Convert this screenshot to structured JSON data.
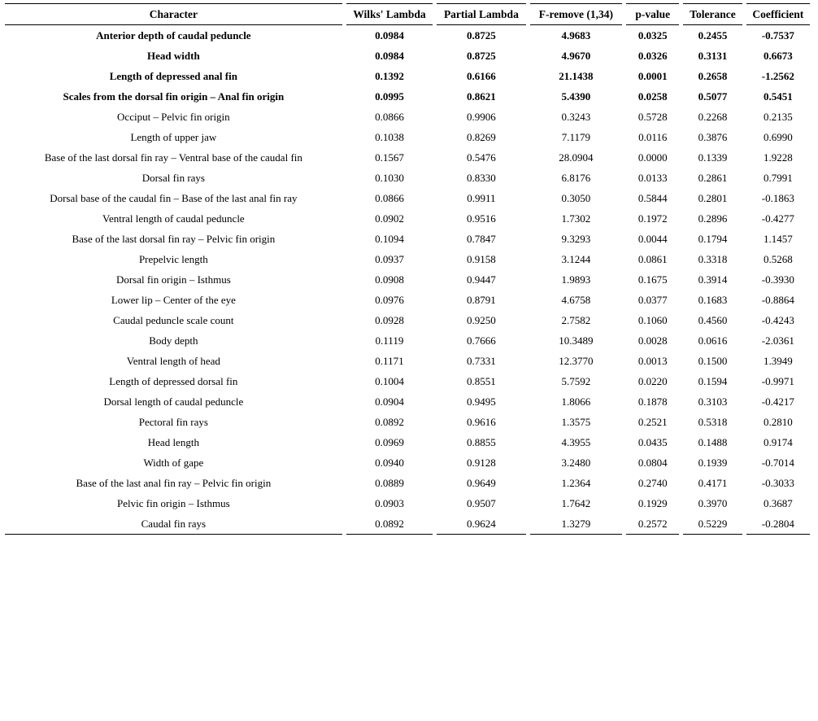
{
  "table": {
    "columns": [
      "Character",
      "Wilks' Lambda",
      "Partial Lambda",
      "F-remove (1,34)",
      "p-value",
      "Tolerance",
      "Coefficient"
    ],
    "rows": [
      {
        "character": "Anterior depth of caudal peduncle",
        "bold": true,
        "values": [
          "0.0984",
          "0.8725",
          "4.9683",
          "0.0325",
          "0.2455",
          "-0.7537"
        ]
      },
      {
        "character": "Head width",
        "bold": true,
        "values": [
          "0.0984",
          "0.8725",
          "4.9670",
          "0.0326",
          "0.3131",
          "0.6673"
        ]
      },
      {
        "character": "Length of depressed anal fin",
        "bold": true,
        "values": [
          "0.1392",
          "0.6166",
          "21.1438",
          "0.0001",
          "0.2658",
          "-1.2562"
        ]
      },
      {
        "character": "Scales from the dorsal fin origin – Anal fin origin",
        "bold": true,
        "values": [
          "0.0995",
          "0.8621",
          "5.4390",
          "0.0258",
          "0.5077",
          "0.5451"
        ]
      },
      {
        "character": "Occiput – Pelvic fin origin",
        "bold": false,
        "values": [
          "0.0866",
          "0.9906",
          "0.3243",
          "0.5728",
          "0.2268",
          "0.2135"
        ]
      },
      {
        "character": "Length of upper jaw",
        "bold": false,
        "values": [
          "0.1038",
          "0.8269",
          "7.1179",
          "0.0116",
          "0.3876",
          "0.6990"
        ]
      },
      {
        "character": "Base of the last dorsal fin ray – Ventral base of the caudal fin",
        "bold": false,
        "values": [
          "0.1567",
          "0.5476",
          "28.0904",
          "0.0000",
          "0.1339",
          "1.9228"
        ]
      },
      {
        "character": "Dorsal fin rays",
        "bold": false,
        "values": [
          "0.1030",
          "0.8330",
          "6.8176",
          "0.0133",
          "0.2861",
          "0.7991"
        ]
      },
      {
        "character": "Dorsal base of the caudal fin – Base of the last anal fin ray",
        "bold": false,
        "values": [
          "0.0866",
          "0.9911",
          "0.3050",
          "0.5844",
          "0.2801",
          "-0.1863"
        ]
      },
      {
        "character": "Ventral length of caudal peduncle",
        "bold": false,
        "values": [
          "0.0902",
          "0.9516",
          "1.7302",
          "0.1972",
          "0.2896",
          "-0.4277"
        ]
      },
      {
        "character": "Base of the last dorsal fin ray – Pelvic fin origin",
        "bold": false,
        "values": [
          "0.1094",
          "0.7847",
          "9.3293",
          "0.0044",
          "0.1794",
          "1.1457"
        ]
      },
      {
        "character": "Prepelvic length",
        "bold": false,
        "values": [
          "0.0937",
          "0.9158",
          "3.1244",
          "0.0861",
          "0.3318",
          "0.5268"
        ]
      },
      {
        "character": "Dorsal fin origin – Isthmus",
        "bold": false,
        "values": [
          "0.0908",
          "0.9447",
          "1.9893",
          "0.1675",
          "0.3914",
          "-0.3930"
        ]
      },
      {
        "character": "Lower lip – Center of the eye",
        "bold": false,
        "values": [
          "0.0976",
          "0.8791",
          "4.6758",
          "0.0377",
          "0.1683",
          "-0.8864"
        ]
      },
      {
        "character": "Caudal peduncle scale count",
        "bold": false,
        "values": [
          "0.0928",
          "0.9250",
          "2.7582",
          "0.1060",
          "0.4560",
          "-0.4243"
        ]
      },
      {
        "character": "Body depth",
        "bold": false,
        "values": [
          "0.1119",
          "0.7666",
          "10.3489",
          "0.0028",
          "0.0616",
          "-2.0361"
        ]
      },
      {
        "character": "Ventral length of head",
        "bold": false,
        "values": [
          "0.1171",
          "0.7331",
          "12.3770",
          "0.0013",
          "0.1500",
          "1.3949"
        ]
      },
      {
        "character": "Length of depressed dorsal fin",
        "bold": false,
        "values": [
          "0.1004",
          "0.8551",
          "5.7592",
          "0.0220",
          "0.1594",
          "-0.9971"
        ]
      },
      {
        "character": "Dorsal length of caudal peduncle",
        "bold": false,
        "values": [
          "0.0904",
          "0.9495",
          "1.8066",
          "0.1878",
          "0.3103",
          "-0.4217"
        ]
      },
      {
        "character": "Pectoral fin rays",
        "bold": false,
        "values": [
          "0.0892",
          "0.9616",
          "1.3575",
          "0.2521",
          "0.5318",
          "0.2810"
        ]
      },
      {
        "character": "Head length",
        "bold": false,
        "values": [
          "0.0969",
          "0.8855",
          "4.3955",
          "0.0435",
          "0.1488",
          "0.9174"
        ]
      },
      {
        "character": "Width of gape",
        "bold": false,
        "values": [
          "0.0940",
          "0.9128",
          "3.2480",
          "0.0804",
          "0.1939",
          "-0.7014"
        ]
      },
      {
        "character": "Base of the last anal fin ray – Pelvic fin origin",
        "bold": false,
        "values": [
          "0.0889",
          "0.9649",
          "1.2364",
          "0.2740",
          "0.4171",
          "-0.3033"
        ]
      },
      {
        "character": "Pelvic fin origin – Isthmus",
        "bold": false,
        "values": [
          "0.0903",
          "0.9507",
          "1.7642",
          "0.1929",
          "0.3970",
          "0.3687"
        ]
      },
      {
        "character": "Caudal fin rays",
        "bold": false,
        "values": [
          "0.0892",
          "0.9624",
          "1.3279",
          "0.2572",
          "0.5229",
          "-0.2804"
        ]
      }
    ]
  },
  "colors": {
    "text": "#000000",
    "background": "#ffffff",
    "rule": "#000000"
  }
}
